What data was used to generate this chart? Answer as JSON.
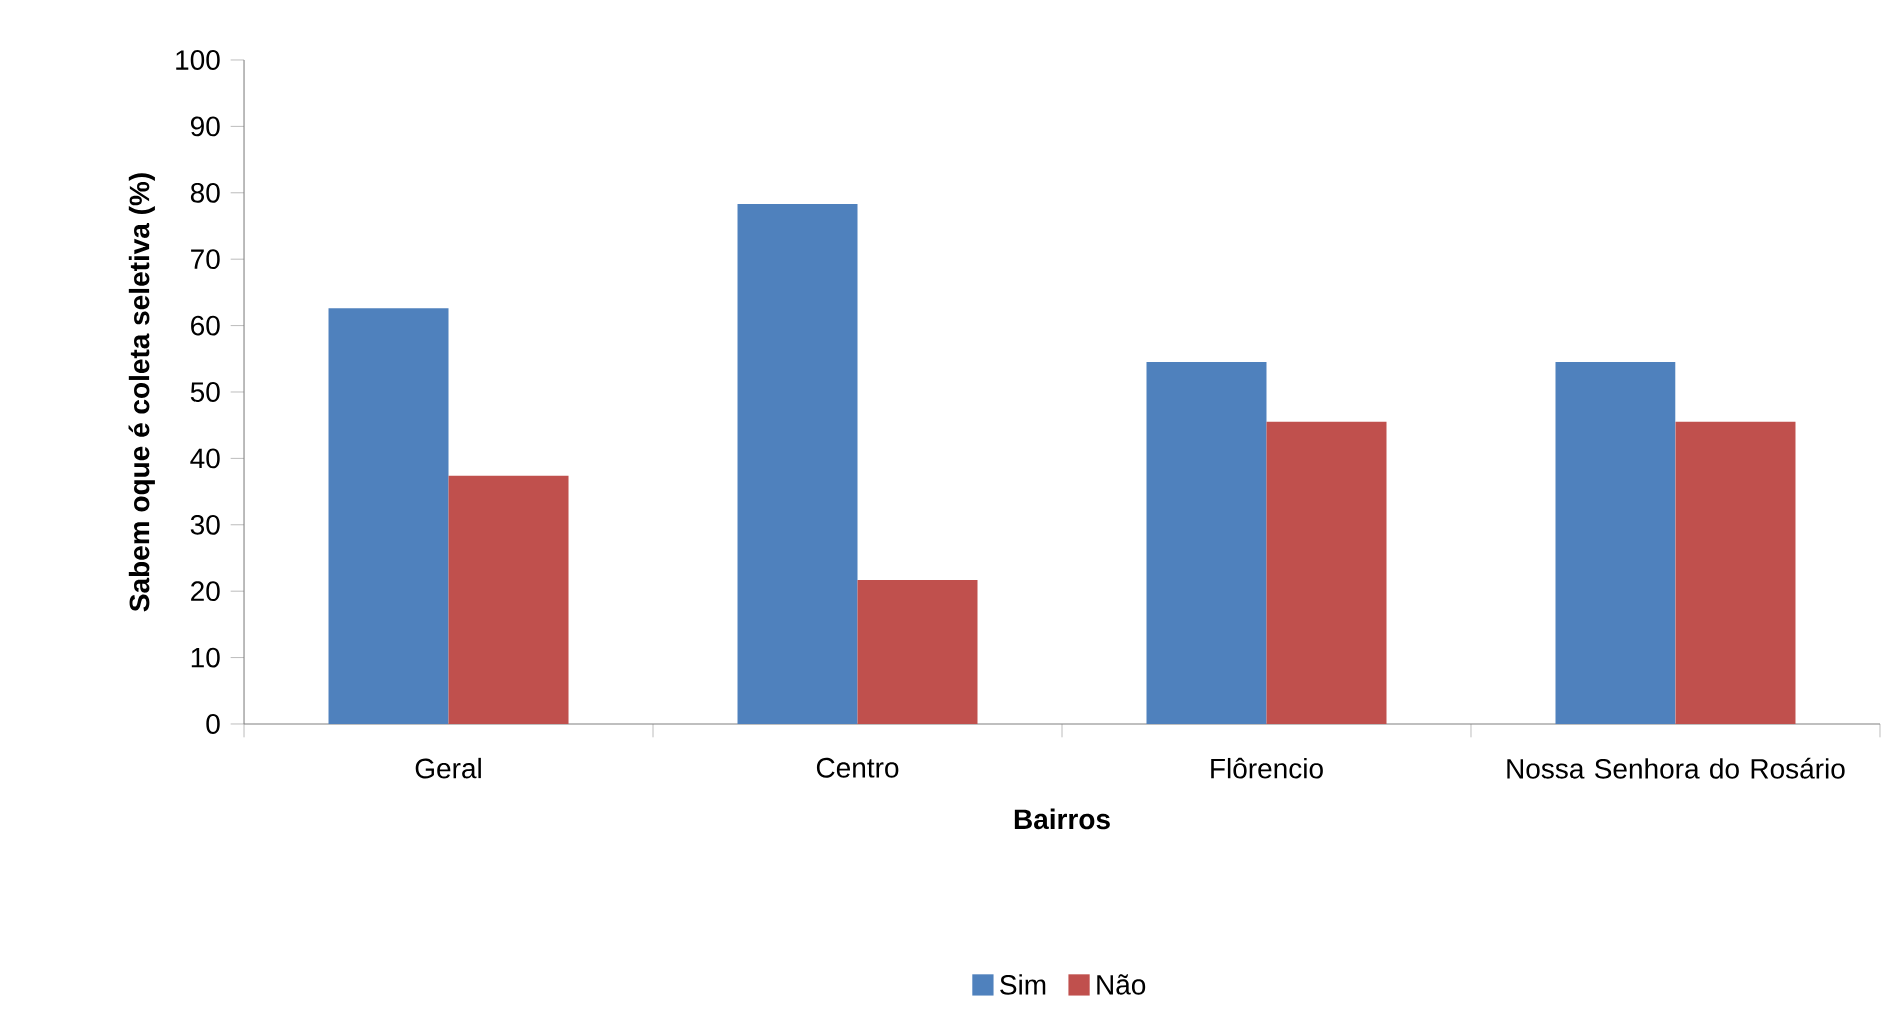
{
  "chart_data": {
    "type": "bar",
    "xlabel": "Bairros",
    "ylabel": "Sabem oque é coleta seletiva (%)",
    "categories": [
      "Geral",
      "Centro",
      "Flôrencio",
      "Nossa Senhora do Rosário"
    ],
    "series": [
      {
        "name": "Sim",
        "color": "#4f81bd",
        "values": [
          62.6,
          78.3,
          54.5,
          54.5
        ]
      },
      {
        "name": "Não",
        "color": "#c0504d",
        "values": [
          37.4,
          21.7,
          45.5,
          45.5
        ]
      }
    ],
    "ylim": [
      0,
      100
    ],
    "yticks": [
      0,
      10,
      20,
      30,
      40,
      50,
      60,
      70,
      80,
      90,
      100
    ],
    "grid": false,
    "legend": "bottom"
  }
}
